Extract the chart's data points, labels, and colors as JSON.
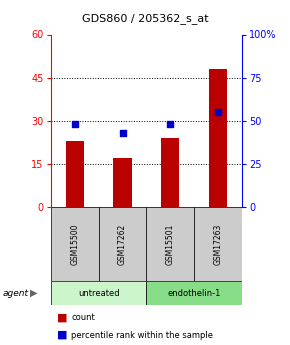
{
  "title": "GDS860 / 205362_s_at",
  "samples": [
    "GSM15500",
    "GSM17262",
    "GSM15501",
    "GSM17263"
  ],
  "counts": [
    23,
    17,
    24,
    48
  ],
  "percentile_ranks": [
    48,
    43,
    48,
    55
  ],
  "bar_color": "#bb0000",
  "dot_color": "#0000cc",
  "ylim_left": [
    0,
    60
  ],
  "ylim_right": [
    0,
    100
  ],
  "yticks_left": [
    0,
    15,
    30,
    45,
    60
  ],
  "yticks_right": [
    0,
    25,
    50,
    75,
    100
  ],
  "ytick_right_labels": [
    "0",
    "25",
    "50",
    "75",
    "100%"
  ],
  "agent_label": "agent",
  "legend_count_label": "count",
  "legend_pct_label": "percentile rank within the sample",
  "bg_color": "#ffffff",
  "sample_box_color": "#cccccc",
  "group_untreated_color": "#ccf5cc",
  "group_endothelin_color": "#88dd88",
  "grid_ticks": [
    15,
    30,
    45
  ]
}
